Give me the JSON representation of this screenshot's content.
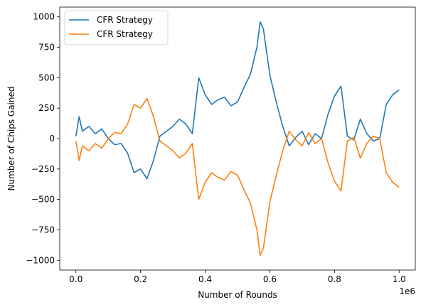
{
  "chart_data": {
    "type": "line",
    "title": "",
    "xlabel": "Number of Rounds",
    "ylabel": "Number of Chips Gained",
    "x_offset_text": "1e6",
    "xlim": [
      -0.05,
      1.05
    ],
    "ylim": [
      -1080,
      1080
    ],
    "xticks": [
      {
        "value": 0.0,
        "label": "0.0"
      },
      {
        "value": 0.2,
        "label": "0.2"
      },
      {
        "value": 0.4,
        "label": "0.4"
      },
      {
        "value": 0.6,
        "label": "0.6"
      },
      {
        "value": 0.8,
        "label": "0.8"
      },
      {
        "value": 1.0,
        "label": "1.0"
      }
    ],
    "yticks": [
      {
        "value": 1000,
        "label": "1000"
      },
      {
        "value": 750,
        "label": "750"
      },
      {
        "value": 500,
        "label": "500"
      },
      {
        "value": 250,
        "label": "250"
      },
      {
        "value": 0,
        "label": "0"
      },
      {
        "value": -250,
        "label": "−250"
      },
      {
        "value": -500,
        "label": "−500"
      },
      {
        "value": -750,
        "label": "−750"
      },
      {
        "value": -1000,
        "label": "−1000"
      }
    ],
    "grid": false,
    "legend_position": "upper-left",
    "x": [
      0.0,
      0.01,
      0.02,
      0.04,
      0.06,
      0.08,
      0.1,
      0.12,
      0.14,
      0.16,
      0.18,
      0.2,
      0.22,
      0.24,
      0.26,
      0.28,
      0.3,
      0.32,
      0.34,
      0.36,
      0.38,
      0.4,
      0.42,
      0.44,
      0.46,
      0.48,
      0.5,
      0.52,
      0.54,
      0.56,
      0.57,
      0.58,
      0.6,
      0.62,
      0.64,
      0.66,
      0.68,
      0.7,
      0.72,
      0.74,
      0.76,
      0.78,
      0.8,
      0.82,
      0.84,
      0.86,
      0.88,
      0.9,
      0.92,
      0.94,
      0.96,
      0.98,
      1.0
    ],
    "series": [
      {
        "name": "CFR Strategy",
        "color": "#1f77b4",
        "values": [
          20,
          180,
          60,
          100,
          40,
          80,
          0,
          -50,
          -40,
          -120,
          -280,
          -250,
          -330,
          -180,
          20,
          60,
          100,
          160,
          120,
          40,
          500,
          360,
          280,
          320,
          340,
          270,
          300,
          420,
          530,
          750,
          960,
          900,
          520,
          300,
          100,
          -60,
          10,
          60,
          -50,
          40,
          0,
          200,
          350,
          430,
          20,
          -10,
          160,
          40,
          -20,
          0,
          280,
          360,
          400
        ]
      },
      {
        "name": "CFR Strategy",
        "color": "#ff7f0e",
        "values": [
          -20,
          -180,
          -60,
          -100,
          -40,
          -80,
          0,
          50,
          40,
          120,
          280,
          250,
          330,
          180,
          -20,
          -60,
          -100,
          -160,
          -120,
          -40,
          -500,
          -360,
          -280,
          -320,
          -340,
          -270,
          -300,
          -420,
          -530,
          -750,
          -960,
          -900,
          -520,
          -300,
          -100,
          60,
          -10,
          -60,
          50,
          -40,
          0,
          -200,
          -350,
          -430,
          -20,
          10,
          -160,
          -40,
          20,
          0,
          -280,
          -360,
          -400
        ]
      }
    ]
  }
}
